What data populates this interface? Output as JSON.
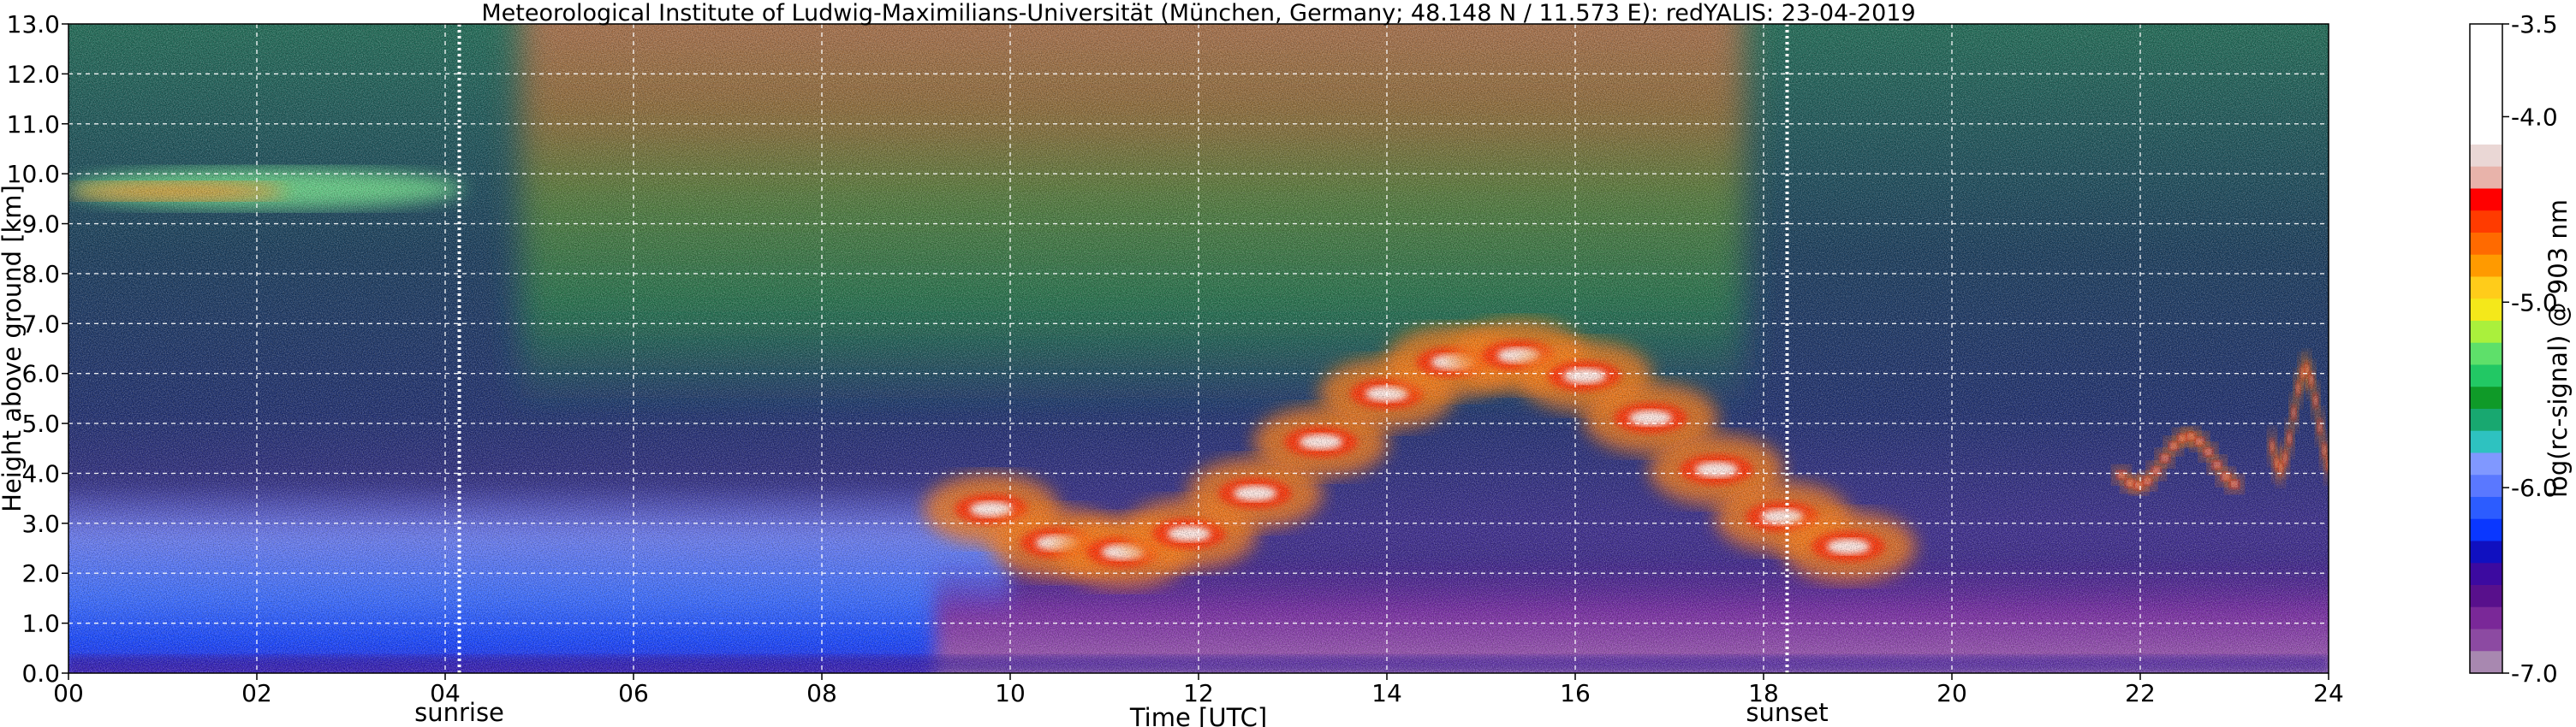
{
  "chart_data": {
    "type": "heatmap",
    "title": "Meteorological Institute of Ludwig-Maximilians-Universität (München, Germany; 48.148 N / 11.573 E):    redYALIS: 23-04-2019",
    "xlabel": "Time [UTC]",
    "ylabel": "Height above ground [km]",
    "xlim": [
      0,
      24
    ],
    "ylim": [
      0,
      13
    ],
    "x_ticks": [
      "00",
      "02",
      "04",
      "06",
      "08",
      "10",
      "12",
      "14",
      "16",
      "18",
      "20",
      "22",
      "24"
    ],
    "y_ticks": [
      "0.0",
      "1.0",
      "2.0",
      "3.0",
      "4.0",
      "5.0",
      "6.0",
      "7.0",
      "8.0",
      "9.0",
      "10.0",
      "11.0",
      "12.0",
      "13.0"
    ],
    "grid": true,
    "markers": [
      {
        "label": "sunrise",
        "x": 4.15
      },
      {
        "label": "sunset",
        "x": 18.25
      }
    ],
    "colorbar": {
      "label": "log(rc-signal) @ 903 nm",
      "range": [
        -7.0,
        -3.5
      ],
      "ticks": [
        "-3.5",
        "-4.0",
        "-5.0",
        "-6.0",
        "-7.0"
      ],
      "colors": [
        "#ffffff",
        "#ead7d5",
        "#e8b3aa",
        "#ff0000",
        "#ff3b00",
        "#ff6a00",
        "#ff9a00",
        "#ffcc1a",
        "#f4e81a",
        "#aaf03c",
        "#5ee06a",
        "#22c864",
        "#0f9a28",
        "#18a870",
        "#2ec2c0",
        "#8098ff",
        "#5a78ff",
        "#2c5cff",
        "#0a37ff",
        "#1010c0",
        "#3c0aa0",
        "#58108c",
        "#7a2898",
        "#8c4aa2",
        "#a888b0"
      ]
    },
    "features": [
      {
        "name": "cirrus",
        "x": [
          0,
          4.2
        ],
        "y": [
          9.2,
          10.2
        ]
      },
      {
        "name": "cloud",
        "x": [
          9.8,
          18.9
        ],
        "y": [
          2.2,
          6.6
        ]
      },
      {
        "name": "cloud",
        "x": [
          21.8,
          23.0
        ],
        "y": [
          3.7,
          4.8
        ]
      },
      {
        "name": "cloud",
        "x": [
          23.4,
          24.0
        ],
        "y": [
          4.0,
          6.2
        ]
      },
      {
        "name": "boundary-layer",
        "x": [
          0,
          24
        ],
        "y": [
          0.0,
          2.0
        ]
      }
    ]
  }
}
